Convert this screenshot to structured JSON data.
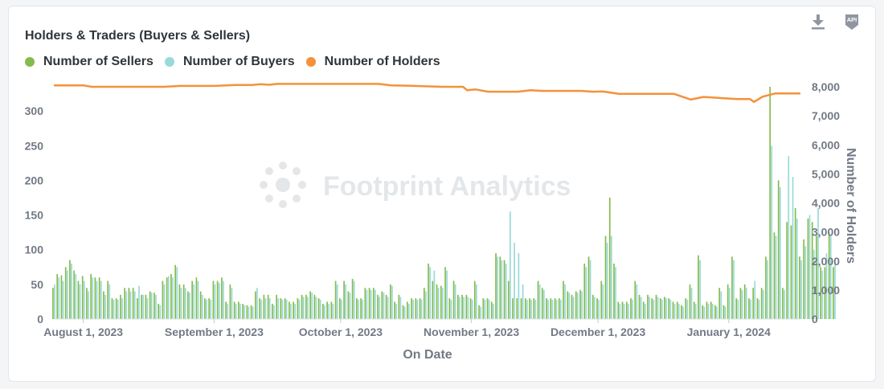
{
  "card": {
    "title": "Holders & Traders (Buyers & Sellers)",
    "download_icon": "download-icon",
    "api_icon": "api-icon",
    "api_label": "API"
  },
  "watermark": "Footprint Analytics",
  "colors": {
    "sellers": "#84bb4c",
    "buyers": "#98d9d9",
    "holders": "#f5913b",
    "axis_text": "#727a85",
    "watermark": "#e4e7ea"
  },
  "chart_data": {
    "type": "bar+line",
    "title": "Holders & Traders (Buyers & Sellers)",
    "legend_position": "top-left",
    "grid": false,
    "xlabel": "On Date",
    "ylabel_left": "",
    "ylabel_right": "Number of Holders",
    "x_ticks": [
      "August 1, 2023",
      "September 1, 2023",
      "October 1, 2023",
      "November 1, 2023",
      "December 1, 2023",
      "January 1, 2024"
    ],
    "x_range": [
      "2023-07-25",
      "2024-01-18"
    ],
    "y_left_ticks": [
      0,
      50,
      100,
      150,
      200,
      250,
      300
    ],
    "y_left_tick_labels": [
      "0",
      "50",
      "100",
      "150",
      "200",
      "250",
      "300"
    ],
    "y_left_range": [
      0,
      335
    ],
    "y_right_ticks": [
      0,
      1000,
      2000,
      3000,
      4000,
      5000,
      6000,
      7000,
      8000
    ],
    "y_right_tick_labels": [
      "0",
      "1,000",
      "2,000",
      "3,000",
      "4,000",
      "5,000",
      "6,000",
      "7,000",
      "8,000"
    ],
    "y_right_range": [
      0,
      8000
    ],
    "series": [
      {
        "name": "Number of Sellers",
        "type": "bar",
        "axis": "left",
        "start_date": "2023-07-25",
        "values": [
          45,
          65,
          63,
          75,
          85,
          70,
          55,
          62,
          45,
          65,
          60,
          60,
          40,
          55,
          30,
          30,
          35,
          45,
          45,
          45,
          30,
          35,
          35,
          40,
          38,
          22,
          55,
          60,
          65,
          78,
          50,
          50,
          40,
          55,
          60,
          40,
          30,
          30,
          55,
          55,
          60,
          25,
          50,
          25,
          25,
          22,
          20,
          20,
          40,
          30,
          35,
          35,
          22,
          35,
          30,
          30,
          25,
          25,
          30,
          35,
          35,
          40,
          35,
          30,
          22,
          25,
          25,
          55,
          30,
          55,
          40,
          58,
          30,
          30,
          45,
          45,
          45,
          35,
          40,
          35,
          50,
          25,
          35,
          20,
          25,
          30,
          30,
          30,
          45,
          80,
          55,
          50,
          48,
          75,
          30,
          55,
          35,
          35,
          35,
          30,
          55,
          20,
          30,
          30,
          25,
          95,
          90,
          85,
          55,
          30,
          30,
          30,
          30,
          30,
          30,
          55,
          45,
          30,
          30,
          30,
          30,
          55,
          40,
          35,
          40,
          42,
          80,
          90,
          35,
          30,
          55,
          120,
          175,
          80,
          25,
          25,
          25,
          30,
          55,
          35,
          25,
          35,
          30,
          35,
          30,
          32,
          30,
          25,
          25,
          20,
          30,
          50,
          25,
          92,
          20,
          25,
          25,
          20,
          45,
          20,
          50,
          90,
          30,
          45,
          50,
          30,
          45,
          30,
          45,
          90,
          335,
          125,
          200,
          45,
          140,
          135,
          160,
          90,
          115,
          145,
          140,
          120,
          75,
          75,
          125,
          75
        ],
        "labeled_date_tick_indices": [
          7,
          38,
          68,
          99,
          129,
          160
        ]
      },
      {
        "name": "Number of Buyers",
        "type": "bar",
        "axis": "left",
        "start_date": "2023-07-25",
        "values": [
          50,
          60,
          55,
          70,
          80,
          65,
          50,
          55,
          40,
          60,
          55,
          55,
          35,
          50,
          28,
          28,
          30,
          40,
          40,
          40,
          48,
          35,
          30,
          38,
          35,
          20,
          50,
          62,
          60,
          75,
          45,
          45,
          38,
          50,
          55,
          35,
          28,
          28,
          50,
          52,
          55,
          22,
          45,
          22,
          22,
          20,
          18,
          18,
          45,
          28,
          30,
          30,
          20,
          30,
          28,
          28,
          22,
          22,
          28,
          32,
          32,
          38,
          32,
          28,
          20,
          22,
          22,
          50,
          28,
          50,
          38,
          55,
          28,
          28,
          42,
          42,
          42,
          32,
          38,
          32,
          48,
          22,
          32,
          18,
          22,
          28,
          28,
          28,
          40,
          75,
          70,
          45,
          45,
          70,
          28,
          50,
          32,
          32,
          32,
          28,
          50,
          18,
          28,
          28,
          22,
          90,
          85,
          80,
          155,
          110,
          95,
          50,
          28,
          28,
          28,
          50,
          42,
          28,
          28,
          28,
          28,
          50,
          38,
          32,
          38,
          40,
          75,
          85,
          32,
          28,
          50,
          110,
          120,
          75,
          22,
          22,
          22,
          28,
          50,
          32,
          22,
          32,
          28,
          32,
          28,
          30,
          28,
          22,
          22,
          18,
          28,
          45,
          22,
          85,
          18,
          22,
          22,
          18,
          40,
          18,
          45,
          85,
          28,
          42,
          45,
          28,
          55,
          28,
          42,
          85,
          250,
          120,
          190,
          42,
          235,
          205,
          145,
          85,
          105,
          150,
          100,
          160,
          70,
          95,
          120,
          80
        ]
      },
      {
        "name": "Number of Holders",
        "type": "line",
        "axis": "right",
        "points": [
          [
            "2023-07-25",
            8050
          ],
          [
            "2023-08-01",
            8050
          ],
          [
            "2023-08-03",
            8000
          ],
          [
            "2023-08-20",
            8000
          ],
          [
            "2023-08-24",
            8030
          ],
          [
            "2023-09-01",
            8030
          ],
          [
            "2023-09-06",
            8060
          ],
          [
            "2023-09-10",
            8060
          ],
          [
            "2023-09-12",
            8090
          ],
          [
            "2023-09-14",
            8070
          ],
          [
            "2023-09-16",
            8100
          ],
          [
            "2023-10-10",
            8100
          ],
          [
            "2023-10-13",
            8050
          ],
          [
            "2023-10-17",
            8040
          ],
          [
            "2023-10-25",
            8000
          ],
          [
            "2023-10-30",
            8000
          ],
          [
            "2023-10-31",
            7880
          ],
          [
            "2023-11-02",
            7910
          ],
          [
            "2023-11-05",
            7830
          ],
          [
            "2023-11-12",
            7830
          ],
          [
            "2023-11-15",
            7880
          ],
          [
            "2023-11-18",
            7860
          ],
          [
            "2023-11-27",
            7860
          ],
          [
            "2023-11-30",
            7830
          ],
          [
            "2023-12-02",
            7840
          ],
          [
            "2023-12-06",
            7760
          ],
          [
            "2023-12-19",
            7760
          ],
          [
            "2023-12-23",
            7560
          ],
          [
            "2023-12-26",
            7650
          ],
          [
            "2024-01-03",
            7580
          ],
          [
            "2024-01-06",
            7580
          ],
          [
            "2024-01-07",
            7480
          ],
          [
            "2024-01-09",
            7660
          ],
          [
            "2024-01-12",
            7770
          ],
          [
            "2024-01-18",
            7770
          ]
        ]
      }
    ]
  }
}
